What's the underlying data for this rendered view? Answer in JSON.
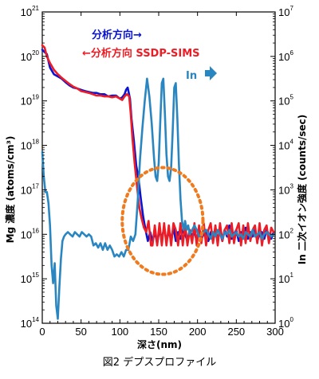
{
  "chart_data": {
    "type": "line",
    "caption": "図2 デプスプロファイル",
    "xlabel": "深さ(nm)",
    "ylabel_left": "Mg 濃度 (atoms/cm³)",
    "ylabel_right": "In 二次イオン強度 (counts/sec)",
    "xlim": [
      0,
      300
    ],
    "ylim_left_log10": [
      14,
      21
    ],
    "ylim_right_log10": [
      0,
      7
    ],
    "log_scale_y": true,
    "x_ticks": [
      "0",
      "50",
      "100",
      "150",
      "200",
      "250",
      "300"
    ],
    "y_left_ticks": [
      {
        "base": "10",
        "exp": "14"
      },
      {
        "base": "10",
        "exp": "15"
      },
      {
        "base": "10",
        "exp": "16"
      },
      {
        "base": "10",
        "exp": "17"
      },
      {
        "base": "10",
        "exp": "18"
      },
      {
        "base": "10",
        "exp": "19"
      },
      {
        "base": "10",
        "exp": "20"
      },
      {
        "base": "10",
        "exp": "21"
      }
    ],
    "y_right_ticks": [
      {
        "base": "10",
        "exp": "0"
      },
      {
        "base": "10",
        "exp": "1"
      },
      {
        "base": "10",
        "exp": "2"
      },
      {
        "base": "10",
        "exp": "3"
      },
      {
        "base": "10",
        "exp": "4"
      },
      {
        "base": "10",
        "exp": "5"
      },
      {
        "base": "10",
        "exp": "6"
      },
      {
        "base": "10",
        "exp": "7"
      }
    ],
    "annotations": {
      "blue_label": "分析方向→",
      "red_label": "←分析方向 SSDP-SIMS",
      "in_label": "In"
    },
    "colors": {
      "blue": "#0a14d2",
      "red": "#ee1c24",
      "teal": "#2a86c0",
      "circle": "#f07a1e"
    },
    "highlight_circle": {
      "x_center": 155,
      "y_center_log10": 16.3,
      "x_radius": 52,
      "y_radius_decades": 1.2
    },
    "series": [
      {
        "color_key": "blue",
        "axis": "left",
        "x": [
          0,
          3,
          6,
          10,
          15,
          20,
          25,
          30,
          35,
          40,
          45,
          50,
          55,
          60,
          65,
          70,
          75,
          80,
          85,
          90,
          95,
          100,
          103,
          106,
          108,
          110,
          113,
          115,
          118,
          121,
          124,
          127,
          130,
          133,
          136,
          139,
          142,
          145,
          148,
          151,
          154,
          157,
          160,
          163,
          166,
          169,
          172,
          175,
          178,
          181,
          184,
          187,
          190,
          193,
          196,
          199,
          202,
          205,
          208,
          211,
          214,
          217,
          220,
          223,
          226,
          229,
          232,
          235,
          238,
          241,
          244,
          247,
          250,
          253,
          256,
          259,
          262,
          265,
          268,
          271,
          274,
          277,
          280,
          283,
          286,
          289,
          292,
          295,
          298
        ],
        "y_log10": [
          20.15,
          20.1,
          20.05,
          19.75,
          19.6,
          19.55,
          19.5,
          19.42,
          19.35,
          19.3,
          19.28,
          19.25,
          19.22,
          19.2,
          19.18,
          19.18,
          19.15,
          19.15,
          19.1,
          19.12,
          19.12,
          19.05,
          19.08,
          19.15,
          19.25,
          19.3,
          19.05,
          18.6,
          18.1,
          17.55,
          17.25,
          16.8,
          16.4,
          16.1,
          15.85,
          16.05,
          15.85,
          16.05,
          15.8,
          16.1,
          15.9,
          16.15,
          15.85,
          16.05,
          15.9,
          16.15,
          15.85,
          16.05,
          15.9,
          16.1,
          16.0,
          15.85,
          16.1,
          15.95,
          16.05,
          15.85,
          16.15,
          15.9,
          16.0,
          16.1,
          15.85,
          16.05,
          15.95,
          16.1,
          15.9,
          16.05,
          15.85,
          16.1,
          15.95,
          16.2,
          15.9,
          16.0,
          16.1,
          15.85,
          16.05,
          15.95,
          16.15,
          15.9,
          16.05,
          15.95,
          16.1,
          15.85,
          16.0,
          16.05,
          15.9,
          16.1,
          16.0,
          15.9,
          16.05
        ]
      },
      {
        "color_key": "red",
        "axis": "left",
        "x": [
          0,
          3,
          6,
          10,
          15,
          20,
          25,
          30,
          35,
          40,
          45,
          50,
          55,
          60,
          65,
          70,
          75,
          80,
          85,
          90,
          95,
          100,
          103,
          106,
          109,
          112,
          114,
          116,
          119,
          122,
          125,
          128,
          131,
          134,
          137,
          140,
          142,
          145,
          148,
          151,
          154,
          157,
          160,
          163,
          166,
          169,
          172,
          175,
          178,
          181,
          184,
          187,
          190,
          193,
          196,
          199,
          202,
          205,
          208,
          211,
          214,
          217,
          220,
          223,
          226,
          229,
          232,
          235,
          238,
          241,
          244,
          247,
          250,
          253,
          256,
          259,
          262,
          265,
          268,
          271,
          274,
          277,
          280,
          283,
          286,
          289,
          292,
          295,
          298
        ],
        "y_log10": [
          20.25,
          20.2,
          20.0,
          19.85,
          19.7,
          19.6,
          19.52,
          19.45,
          19.38,
          19.32,
          19.28,
          19.22,
          19.2,
          19.18,
          19.15,
          19.12,
          19.12,
          19.1,
          19.1,
          19.08,
          19.1,
          19.05,
          19.02,
          19.1,
          19.15,
          19.1,
          18.7,
          18.2,
          17.6,
          17.1,
          16.6,
          16.35,
          16.15,
          16.05,
          16.3,
          15.75,
          15.75,
          16.2,
          15.75,
          16.25,
          15.75,
          16.25,
          15.75,
          16.2,
          15.75,
          16.25,
          16.1,
          15.75,
          16.25,
          15.75,
          16.25,
          15.75,
          16.1,
          15.8,
          16.25,
          15.75,
          16.2,
          15.8,
          16.25,
          15.75,
          16.1,
          16.25,
          15.8,
          16.2,
          15.75,
          16.25,
          15.85,
          16.1,
          16.2,
          15.8,
          16.25,
          15.8,
          16.1,
          16.25,
          15.75,
          16.2,
          15.8,
          16.25,
          15.85,
          16.1,
          16.2,
          15.8,
          16.25,
          15.75,
          16.1,
          16.2,
          15.8,
          16.15,
          16.05
        ]
      },
      {
        "color_key": "teal",
        "axis": "right",
        "x": [
          0,
          2,
          4,
          6,
          8,
          10,
          12,
          14,
          16,
          18,
          20,
          22,
          24,
          26,
          28,
          30,
          33,
          36,
          39,
          42,
          45,
          48,
          51,
          54,
          57,
          60,
          63,
          66,
          69,
          72,
          75,
          78,
          81,
          84,
          87,
          90,
          93,
          96,
          99,
          102,
          105,
          108,
          111,
          114,
          117,
          120,
          123,
          126,
          129,
          132,
          135,
          138,
          141,
          144,
          146,
          148,
          150,
          152,
          154,
          156,
          158,
          160,
          162,
          164,
          166,
          168,
          170,
          172,
          174,
          176,
          178,
          180,
          182,
          184,
          186,
          188,
          190,
          193,
          196,
          199,
          202,
          205,
          208,
          211,
          214,
          217,
          220,
          223,
          226,
          229,
          232,
          235,
          238,
          241,
          244,
          247,
          250,
          253,
          256,
          259,
          262,
          265,
          268,
          271,
          274,
          277,
          280,
          283,
          286,
          289,
          292,
          295,
          298
        ],
        "y_log10": [
          3.85,
          3.3,
          2.95,
          2.95,
          2.7,
          2.2,
          1.3,
          0.9,
          1.35,
          0.4,
          0.1,
          0.8,
          1.45,
          1.85,
          1.95,
          2.0,
          2.05,
          2.0,
          1.95,
          2.05,
          2.0,
          1.95,
          2.05,
          2.0,
          1.95,
          2.0,
          1.95,
          1.75,
          1.8,
          1.7,
          1.8,
          1.65,
          1.8,
          1.65,
          1.75,
          1.65,
          1.5,
          1.55,
          1.5,
          1.6,
          1.5,
          1.65,
          1.65,
          1.95,
          1.85,
          2.0,
          2.75,
          3.7,
          4.4,
          5.0,
          5.5,
          5.1,
          4.5,
          3.7,
          3.3,
          3.2,
          3.6,
          4.5,
          5.4,
          5.5,
          4.7,
          3.8,
          3.3,
          3.2,
          3.5,
          4.3,
          5.3,
          5.4,
          4.6,
          3.6,
          2.8,
          2.3,
          2.1,
          2.3,
          2.1,
          2.2,
          2.0,
          2.1,
          2.2,
          2.1,
          1.95,
          2.0,
          2.05,
          2.1,
          2.0,
          1.9,
          2.05,
          1.95,
          2.1,
          2.0,
          1.9,
          2.05,
          2.0,
          2.1,
          1.95,
          2.0,
          2.05,
          1.95,
          2.0,
          1.9,
          2.05,
          2.0,
          1.95,
          2.1,
          1.95,
          2.0,
          2.05,
          1.9,
          2.0,
          2.05,
          2.0,
          1.95,
          2.0
        ]
      }
    ]
  }
}
